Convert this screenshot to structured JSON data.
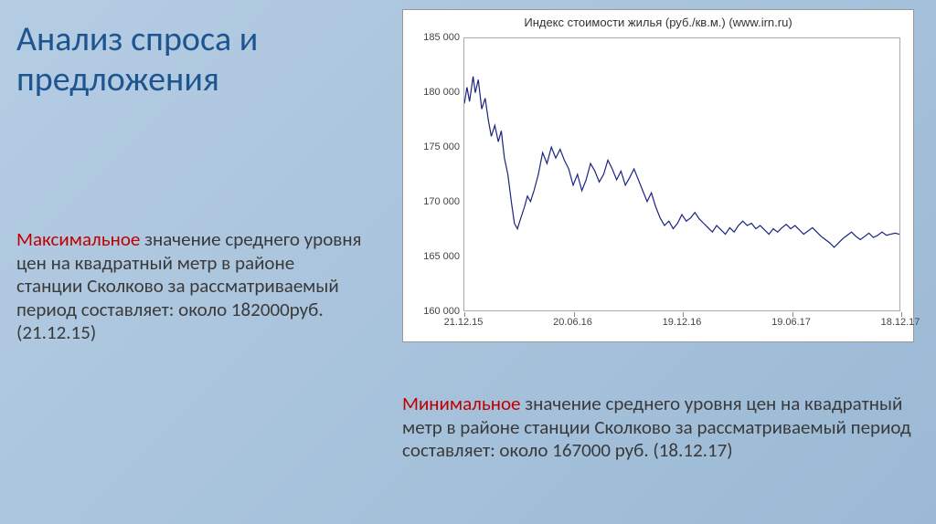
{
  "title": "Анализ спроса и предложения",
  "para1": {
    "highlight": "Максимальное",
    "rest": " значение среднего уровня цен на квадратный метр в районе станции Сколково за рассматриваемый период составляет: около 182000руб. (21.12.15)"
  },
  "para2": {
    "highlight": "Минимальное",
    "rest": " значение среднего уровня цен на квадратный метр в районе станции Сколково за рассматриваемый период составляет: около  167000 руб. (18.12.17)"
  },
  "chart": {
    "type": "line",
    "title": "Индекс стоимости жилья (руб./кв.м.) (www.irn.ru)",
    "title_fontsize": 13,
    "line_color": "#1a237e",
    "line_width": 1.2,
    "background_color": "#ffffff",
    "border_color": "#aaaaaa",
    "label_fontsize": 11,
    "label_color": "#444444",
    "ylim": [
      160000,
      185000
    ],
    "ytick_step": 5000,
    "yticks": [
      160000,
      165000,
      170000,
      175000,
      180000,
      185000
    ],
    "ytick_labels": [
      "160 000",
      "165 000",
      "170 000",
      "175 000",
      "180 000",
      "185 000"
    ],
    "xticks": [
      0,
      0.25,
      0.5,
      0.75,
      1.0
    ],
    "xtick_labels": [
      "21.12.15",
      "20.06.16",
      "19.12.16",
      "19.06.17",
      "18.12.17"
    ],
    "xtick_mark_color": "#888888",
    "data": [
      [
        0.0,
        179000
      ],
      [
        0.006,
        180500
      ],
      [
        0.012,
        179200
      ],
      [
        0.02,
        181500
      ],
      [
        0.025,
        180000
      ],
      [
        0.032,
        181200
      ],
      [
        0.04,
        178500
      ],
      [
        0.048,
        179500
      ],
      [
        0.055,
        177500
      ],
      [
        0.062,
        176000
      ],
      [
        0.07,
        177000
      ],
      [
        0.078,
        175500
      ],
      [
        0.085,
        176500
      ],
      [
        0.092,
        174000
      ],
      [
        0.1,
        172500
      ],
      [
        0.108,
        170000
      ],
      [
        0.115,
        168000
      ],
      [
        0.122,
        167500
      ],
      [
        0.13,
        168500
      ],
      [
        0.138,
        169500
      ],
      [
        0.145,
        170500
      ],
      [
        0.152,
        170000
      ],
      [
        0.16,
        171000
      ],
      [
        0.17,
        172500
      ],
      [
        0.18,
        174500
      ],
      [
        0.19,
        173500
      ],
      [
        0.2,
        175000
      ],
      [
        0.21,
        174000
      ],
      [
        0.22,
        174800
      ],
      [
        0.23,
        173800
      ],
      [
        0.24,
        173000
      ],
      [
        0.25,
        171500
      ],
      [
        0.26,
        172500
      ],
      [
        0.27,
        171000
      ],
      [
        0.28,
        172000
      ],
      [
        0.29,
        173500
      ],
      [
        0.3,
        172800
      ],
      [
        0.31,
        171800
      ],
      [
        0.32,
        172500
      ],
      [
        0.33,
        173800
      ],
      [
        0.34,
        173000
      ],
      [
        0.35,
        172000
      ],
      [
        0.36,
        172800
      ],
      [
        0.37,
        171500
      ],
      [
        0.38,
        172200
      ],
      [
        0.39,
        173000
      ],
      [
        0.4,
        172000
      ],
      [
        0.41,
        171000
      ],
      [
        0.42,
        170000
      ],
      [
        0.43,
        170800
      ],
      [
        0.44,
        169500
      ],
      [
        0.45,
        168500
      ],
      [
        0.46,
        167800
      ],
      [
        0.47,
        168200
      ],
      [
        0.48,
        167500
      ],
      [
        0.49,
        168000
      ],
      [
        0.5,
        168800
      ],
      [
        0.51,
        168200
      ],
      [
        0.52,
        168500
      ],
      [
        0.53,
        169000
      ],
      [
        0.54,
        168400
      ],
      [
        0.55,
        168000
      ],
      [
        0.56,
        167600
      ],
      [
        0.57,
        167200
      ],
      [
        0.58,
        167800
      ],
      [
        0.59,
        167400
      ],
      [
        0.6,
        167000
      ],
      [
        0.61,
        167600
      ],
      [
        0.62,
        167200
      ],
      [
        0.63,
        167800
      ],
      [
        0.64,
        168200
      ],
      [
        0.65,
        167800
      ],
      [
        0.66,
        168000
      ],
      [
        0.67,
        167500
      ],
      [
        0.68,
        167800
      ],
      [
        0.69,
        167400
      ],
      [
        0.7,
        167000
      ],
      [
        0.71,
        167500
      ],
      [
        0.72,
        167200
      ],
      [
        0.73,
        167600
      ],
      [
        0.74,
        167900
      ],
      [
        0.75,
        167500
      ],
      [
        0.76,
        167800
      ],
      [
        0.77,
        167400
      ],
      [
        0.78,
        167000
      ],
      [
        0.79,
        167300
      ],
      [
        0.8,
        167600
      ],
      [
        0.81,
        167200
      ],
      [
        0.82,
        166800
      ],
      [
        0.83,
        166500
      ],
      [
        0.84,
        166200
      ],
      [
        0.85,
        165800
      ],
      [
        0.86,
        166200
      ],
      [
        0.87,
        166600
      ],
      [
        0.88,
        166900
      ],
      [
        0.89,
        167200
      ],
      [
        0.9,
        166800
      ],
      [
        0.91,
        166500
      ],
      [
        0.92,
        166800
      ],
      [
        0.93,
        167100
      ],
      [
        0.94,
        166700
      ],
      [
        0.95,
        166900
      ],
      [
        0.96,
        167200
      ],
      [
        0.97,
        166900
      ],
      [
        0.98,
        167000
      ],
      [
        0.99,
        167100
      ],
      [
        1.0,
        167000
      ]
    ]
  }
}
